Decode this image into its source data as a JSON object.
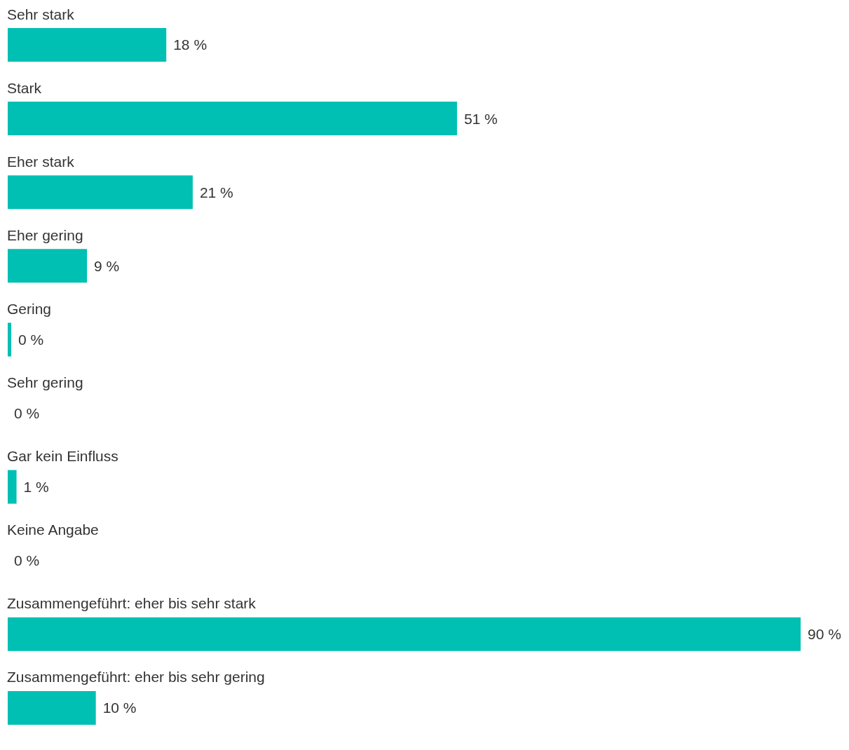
{
  "chart_data": {
    "type": "bar",
    "orientation": "horizontal",
    "categories": [
      "Sehr stark",
      "Stark",
      "Eher stark",
      "Eher gering",
      "Gering",
      "Sehr gering",
      "Gar kein Einfluss",
      "Keine Angabe",
      "Zusammengeführt: eher bis sehr stark",
      "Zusammengeführt: eher bis sehr gering"
    ],
    "values": [
      18,
      51,
      21,
      9,
      0.4,
      0,
      1,
      0,
      90,
      10
    ],
    "value_labels": [
      "18 %",
      "51 %",
      "21 %",
      "9 %",
      "0 %",
      "0 %",
      "1 %",
      "0 %",
      "90 %",
      "10 %"
    ],
    "color": "#00bfb3",
    "grid": false,
    "legend": false
  }
}
